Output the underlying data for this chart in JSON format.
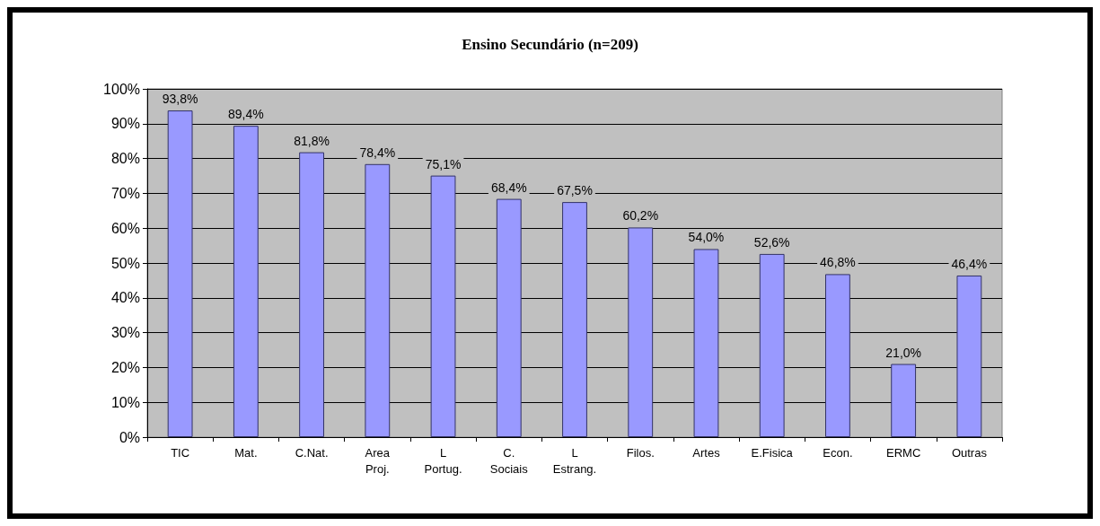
{
  "chart_data": {
    "type": "bar",
    "title": "Ensino Secundário (n=209)",
    "categories": [
      "TIC",
      "Mat.",
      "C.Nat.",
      "Area\nProj.",
      "L\nPortug.",
      "C.\nSociais",
      "L\nEstrang.",
      "Filos.",
      "Artes",
      "E.Fisica",
      "Econ.",
      "ERMC",
      "Outras"
    ],
    "values": [
      93.8,
      89.4,
      81.8,
      78.4,
      75.1,
      68.4,
      67.5,
      60.2,
      54.0,
      52.6,
      46.8,
      21.0,
      46.4
    ],
    "value_labels": [
      "93,8%",
      "89,4%",
      "81,8%",
      "78,4%",
      "75,1%",
      "68,4%",
      "67,5%",
      "60,2%",
      "54,0%",
      "52,6%",
      "46,8%",
      "21,0%",
      "46,4%"
    ],
    "color": "#9999ff",
    "ylim": [
      0,
      100
    ],
    "yticks": [
      {
        "value": 0,
        "label": "0%"
      },
      {
        "value": 10,
        "label": "10%"
      },
      {
        "value": 20,
        "label": "20%"
      },
      {
        "value": 30,
        "label": "30%"
      },
      {
        "value": 40,
        "label": "40%"
      },
      {
        "value": 50,
        "label": "50%"
      },
      {
        "value": 60,
        "label": "60%"
      },
      {
        "value": 70,
        "label": "70%"
      },
      {
        "value": 80,
        "label": "80%"
      },
      {
        "value": 90,
        "label": "90%"
      },
      {
        "value": 100,
        "label": "100%"
      }
    ],
    "grid": "y"
  }
}
